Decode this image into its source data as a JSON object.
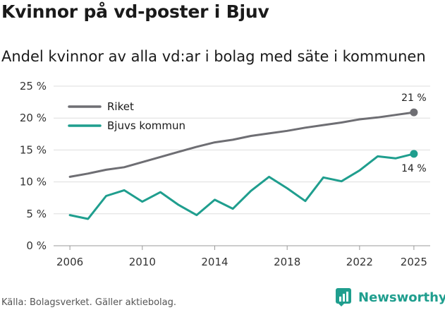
{
  "title": "Kvinnor på vd-poster i Bjuv",
  "subtitle": "Andel kvinnor av alla vd:ar i bolag med säte i kommunen",
  "source": "Källa: Bolagsverket. Gäller aktiebolag.",
  "brand": {
    "name": "Newsworthy",
    "color": "#1f9e8e",
    "icon": "bar-chart-logo-icon"
  },
  "chart_data": {
    "type": "line",
    "title": "Kvinnor på vd-poster i Bjuv",
    "subtitle": "Andel kvinnor av alla vd:ar i bolag med säte i kommunen",
    "xlabel": "",
    "ylabel": "",
    "x": [
      2006,
      2007,
      2008,
      2009,
      2010,
      2011,
      2012,
      2013,
      2014,
      2015,
      2016,
      2017,
      2018,
      2019,
      2020,
      2021,
      2022,
      2023,
      2024,
      2025
    ],
    "xlim": [
      2005.1,
      2025.9
    ],
    "ylim": [
      0,
      25
    ],
    "x_ticks": [
      "2006",
      "2010",
      "2014",
      "2018",
      "2022",
      "2025"
    ],
    "x_tick_values": [
      2006,
      2010,
      2014,
      2018,
      2022,
      2025
    ],
    "y_ticks": [
      "0 %",
      "5 %",
      "10 %",
      "15 %",
      "20 %",
      "25 %"
    ],
    "y_tick_values": [
      0,
      5,
      10,
      15,
      20,
      25
    ],
    "grid": true,
    "legend_position": "top-left",
    "series": [
      {
        "name": "Riket",
        "color": "#6e6e73",
        "end_label": "21 %",
        "values": [
          10.8,
          11.3,
          11.9,
          12.3,
          13.1,
          13.9,
          14.7,
          15.5,
          16.2,
          16.6,
          17.2,
          17.6,
          18.0,
          18.5,
          18.9,
          19.3,
          19.8,
          20.1,
          20.5,
          20.9
        ]
      },
      {
        "name": "Bjuvs kommun",
        "color": "#1f9e8e",
        "end_label": "14 %",
        "values": [
          4.8,
          4.2,
          7.8,
          8.7,
          6.9,
          8.4,
          6.4,
          4.8,
          7.2,
          5.8,
          8.6,
          10.8,
          9.0,
          7.0,
          10.7,
          10.1,
          11.8,
          14.0,
          13.7,
          14.4
        ]
      }
    ]
  }
}
